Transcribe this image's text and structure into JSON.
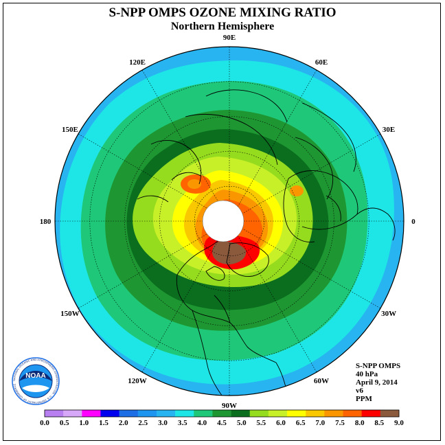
{
  "title": "S-NPP OMPS OZONE MIXING RATIO",
  "subtitle": "Northern Hemisphere",
  "longitude_labels": [
    {
      "text": "90E",
      "lon": 90
    },
    {
      "text": "60E",
      "lon": 60
    },
    {
      "text": "30E",
      "lon": 30
    },
    {
      "text": "0",
      "lon": 0
    },
    {
      "text": "30W",
      "lon": -30
    },
    {
      "text": "60W",
      "lon": -60
    },
    {
      "text": "90W",
      "lon": -90
    },
    {
      "text": "120W",
      "lon": -120
    },
    {
      "text": "150W",
      "lon": -150
    },
    {
      "text": "180",
      "lon": 180
    },
    {
      "text": "150E",
      "lon": 150
    },
    {
      "text": "120E",
      "lon": 120
    }
  ],
  "info": {
    "instrument": "S-NPP OMPS",
    "level": "40 hPa",
    "date": "April 9, 2014",
    "version": "v6",
    "units": "PPM"
  },
  "colorbar": {
    "ticks": [
      "0.0",
      "0.5",
      "1.0",
      "1.5",
      "2.0",
      "2.5",
      "3.0",
      "3.5",
      "4.0",
      "4.5",
      "5.0",
      "5.5",
      "6.0",
      "6.5",
      "7.0",
      "7.5",
      "8.0",
      "8.5",
      "9.0"
    ],
    "colors": [
      "#b77ff0",
      "#d8a8f8",
      "#ff00ff",
      "#0000ee",
      "#1e6ee6",
      "#1e96f0",
      "#28b4f0",
      "#1ee6e6",
      "#1ec878",
      "#1e9632",
      "#0a6e1e",
      "#96dc1e",
      "#c8f028",
      "#ffff00",
      "#fac800",
      "#fa9600",
      "#ff6400",
      "#ff0000",
      "#8b5a3c"
    ]
  },
  "logo": {
    "center_text": "NOAA",
    "ring_text": "NATIONAL OCEANIC AND ATMOSPHERIC ADMINISTRATION · U.S. DEPARTMENT OF COMMERCE"
  }
}
